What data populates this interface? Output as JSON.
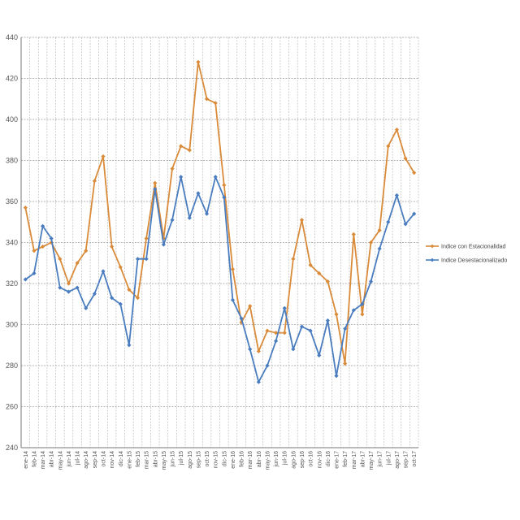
{
  "chart_data": {
    "type": "line",
    "title": "",
    "xlabel": "",
    "ylabel": "",
    "ylim": [
      240,
      440
    ],
    "yticks": [
      240,
      260,
      280,
      300,
      320,
      340,
      360,
      380,
      400,
      420,
      440
    ],
    "grid": true,
    "legend_position": "right",
    "categories": [
      "ene-14",
      "feb-14",
      "mar-14",
      "abr-14",
      "may-14",
      "jun-14",
      "jul-14",
      "ago-14",
      "sep-14",
      "oct-14",
      "nov-14",
      "dic-14",
      "ene-15",
      "feb-15",
      "mar-15",
      "abr-15",
      "may-15",
      "jun-15",
      "jul-15",
      "ago-15",
      "sep-15",
      "oct-15",
      "nov-15",
      "dic-15",
      "ene-16",
      "feb-16",
      "mar-16",
      "abr-16",
      "may-16",
      "jun-16",
      "jul-16",
      "ago-16",
      "sep-16",
      "oct-16",
      "nov-16",
      "dic-16",
      "ene-17",
      "feb-17",
      "mar-17",
      "abr-17",
      "may-17",
      "jun-17",
      "jul-17",
      "ago-17",
      "sep-17",
      "oct-17"
    ],
    "series": [
      {
        "name": "Indice con Estacionalidad",
        "color": "#d98b3a",
        "values": [
          357,
          336,
          338,
          340,
          332,
          320,
          330,
          336,
          370,
          382,
          338,
          328,
          317,
          313,
          342,
          369,
          342,
          376,
          387,
          385,
          428,
          410,
          408,
          368,
          327,
          301,
          309,
          287,
          297,
          296,
          296,
          332,
          351,
          329,
          325,
          321,
          305,
          281,
          344,
          305,
          340,
          346,
          387,
          395,
          381,
          374
        ]
      },
      {
        "name": "Indice Desestacionalizado",
        "color": "#4a7dbf",
        "values": [
          322,
          325,
          348,
          342,
          318,
          316,
          318,
          308,
          315,
          326,
          313,
          310,
          290,
          332,
          332,
          366,
          339,
          351,
          372,
          352,
          364,
          354,
          372,
          362,
          312,
          303,
          288,
          272,
          280,
          292,
          308,
          288,
          299,
          297,
          285,
          302,
          275,
          298,
          307,
          310,
          321,
          337,
          350,
          363,
          349,
          354
        ]
      }
    ]
  }
}
